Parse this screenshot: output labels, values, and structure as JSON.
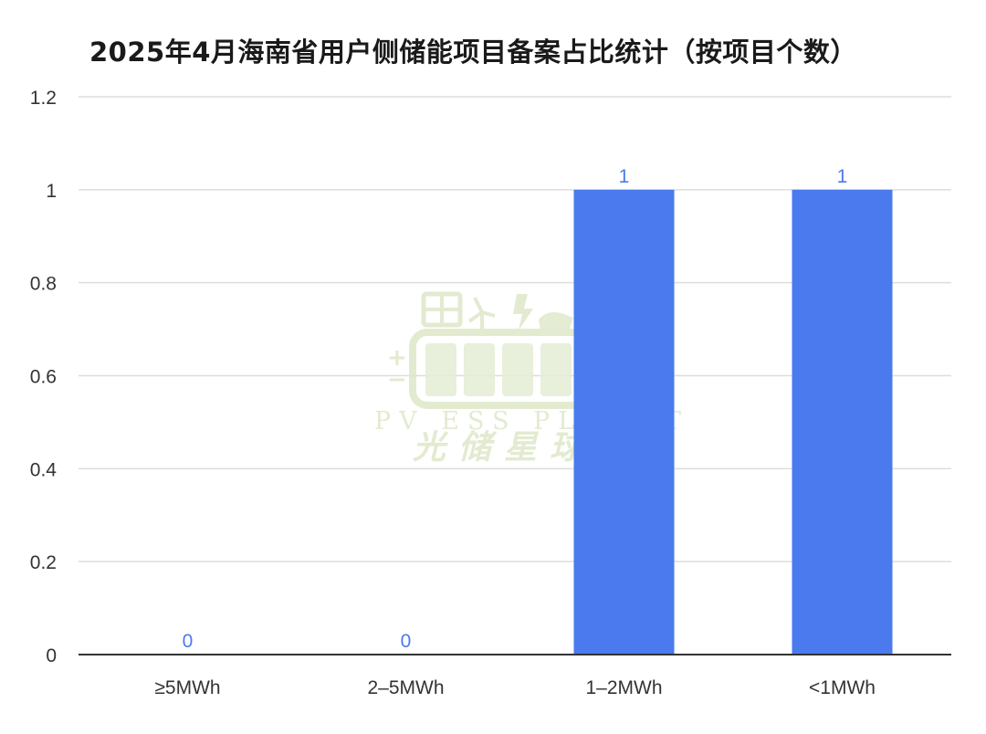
{
  "chart_data": {
    "type": "bar",
    "title": "2025年4月海南省用户侧储能项目备案占比统计（按项目个数）",
    "categories": [
      "≥5MWh",
      "2–5MWh",
      "1–2MWh",
      "<1MWh"
    ],
    "values": [
      0,
      0,
      1,
      1
    ],
    "data_labels": [
      "0",
      "0",
      "1",
      "1"
    ],
    "yticks": [
      0,
      0.2,
      0.4,
      0.6,
      0.8,
      1,
      1.2
    ],
    "ytick_labels": [
      "0",
      "0.2",
      "0.4",
      "0.6",
      "0.8",
      "1",
      "1.2"
    ],
    "ylim": [
      0,
      1.2
    ],
    "grid": true,
    "legend": "none",
    "colors": {
      "bar": "#4a7aee",
      "label": "#4a7aee",
      "grid": "#dddddd",
      "axis": "#333333"
    }
  },
  "watermark": {
    "text_en": "PV ESS PLANET",
    "text_cn": "光储星球",
    "color": "#dfe9cc"
  }
}
